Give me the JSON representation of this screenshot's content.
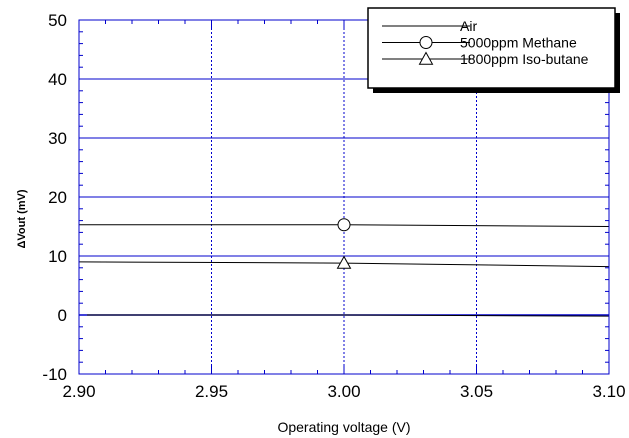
{
  "chart_data": {
    "type": "line",
    "title": "",
    "xlabel": "Operating voltage (V)",
    "ylabel": "ΔVout (mV)",
    "xlim": [
      2.9,
      3.1
    ],
    "ylim": [
      -10,
      50
    ],
    "xticks": [
      "2.90",
      "2.95",
      "3.00",
      "3.05",
      "3.10"
    ],
    "yticks": [
      "-10",
      "0",
      "10",
      "20",
      "30",
      "40",
      "50"
    ],
    "grid": true,
    "legend_position": "top-right",
    "series": [
      {
        "name": "Air",
        "marker": "none",
        "x": [
          2.9,
          3.0,
          3.1
        ],
        "y": [
          0,
          0,
          -0.2
        ]
      },
      {
        "name": "5000ppm Methane",
        "marker": "circle",
        "x": [
          2.9,
          3.0,
          3.1
        ],
        "y": [
          15.3,
          15.3,
          15.0
        ]
      },
      {
        "name": "1800ppm Iso-butane",
        "marker": "triangle",
        "x": [
          2.9,
          3.0,
          3.1
        ],
        "y": [
          9.0,
          8.8,
          8.2
        ]
      }
    ],
    "colors": {
      "line": "#000000",
      "grid": "#0000cc",
      "zero_line": "#0000cc",
      "frame": "#0000cc"
    }
  }
}
